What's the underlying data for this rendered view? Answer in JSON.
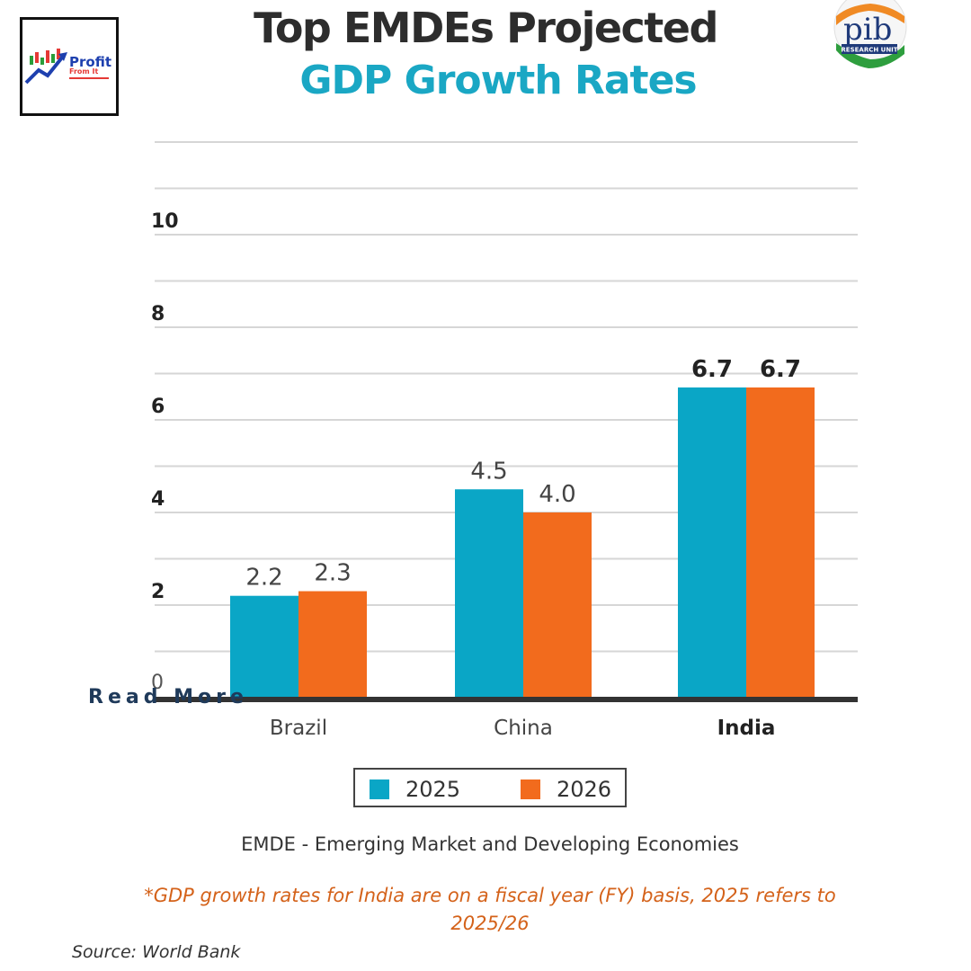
{
  "title": {
    "line1": "Top EMDEs Projected",
    "line2": "GDP Growth Rates"
  },
  "logo": {
    "brand_text": "Profit",
    "brand_subtext": "From It",
    "icon": "profit-chart-logo"
  },
  "pib_logo": {
    "icon": "pib-research-unit-seal",
    "text": "RESEARCH UNIT"
  },
  "chart_data": {
    "type": "bar",
    "categories": [
      "Brazil",
      "China",
      "India"
    ],
    "series": [
      {
        "name": "2025",
        "values": [
          2.2,
          4.5,
          6.7
        ],
        "labels": [
          "2.2",
          "4.5",
          "6.7"
        ],
        "color": "#0aa6c6"
      },
      {
        "name": "2026",
        "values": [
          2.3,
          4.0,
          6.7
        ],
        "labels": [
          "2.3",
          "4.0",
          "6.7"
        ],
        "color": "#f26b1d"
      }
    ],
    "yticks": [
      "0",
      "2",
      "4",
      "6",
      "8",
      "10"
    ],
    "ylim": [
      0,
      12
    ],
    "grid": true,
    "legend": "bottom",
    "title": "Top EMDEs Projected GDP Growth Rates",
    "xlabel": "",
    "ylabel": ""
  },
  "footnote": "EMDE - Emerging Market and Developing Economies",
  "note": "*GDP growth rates for India are on a fiscal year (FY) basis, 2025 refers to 2025/26",
  "source": "Source: World Bank",
  "read_more": "Read More"
}
